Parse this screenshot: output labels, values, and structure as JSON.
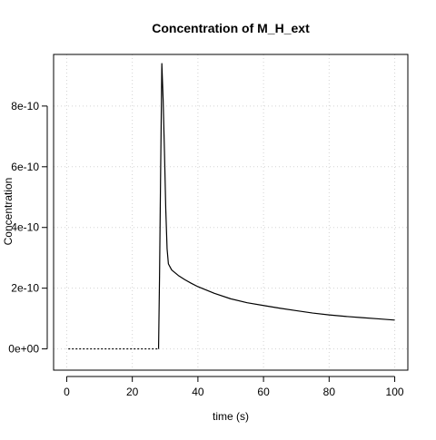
{
  "chart_data": {
    "type": "line",
    "title": "Concentration of M_H_ext",
    "xlabel": "time (s)",
    "ylabel": "Concentration",
    "xlim": [
      -4,
      104
    ],
    "ylim": [
      -7e-11,
      9.7e-10
    ],
    "grid": true,
    "x_ticks": [
      0,
      20,
      40,
      60,
      80,
      100
    ],
    "x_tick_labels": [
      "0",
      "20",
      "40",
      "60",
      "80",
      "100"
    ],
    "y_ticks": [
      0,
      2e-10,
      4e-10,
      6e-10,
      8e-10
    ],
    "y_tick_labels": [
      "0e+00",
      "2e-10",
      "4e-10",
      "6e-10",
      "8e-10"
    ],
    "series": [
      {
        "color": "#000000",
        "segments": [
          {
            "style": "dotted",
            "x": [
              0.5,
              28.0
            ],
            "y": [
              0,
              0
            ]
          },
          {
            "style": "solid",
            "x": [
              28.0,
              28.3,
              28.6,
              29.0,
              29.4,
              29.8,
              30.2,
              30.6,
              31.0,
              32.0,
              34.0,
              36.0,
              38.0,
              40.0,
              45.0,
              50.0,
              55.0,
              60.0,
              65.0,
              70.0,
              75.0,
              80.0,
              85.0,
              90.0,
              95.0,
              100.0
            ],
            "y": [
              0,
              2.4e-10,
              5.5e-10,
              9.4e-10,
              8.2e-10,
              6.5e-10,
              4.6e-10,
              3.3e-10,
              2.8e-10,
              2.6e-10,
              2.42e-10,
              2.28e-10,
              2.16e-10,
              2.05e-10,
              1.83e-10,
              1.65e-10,
              1.52e-10,
              1.43e-10,
              1.34e-10,
              1.26e-10,
              1.18e-10,
              1.12e-10,
              1.07e-10,
              1.03e-10,
              9.9e-11,
              9.5e-11
            ]
          }
        ]
      }
    ]
  }
}
